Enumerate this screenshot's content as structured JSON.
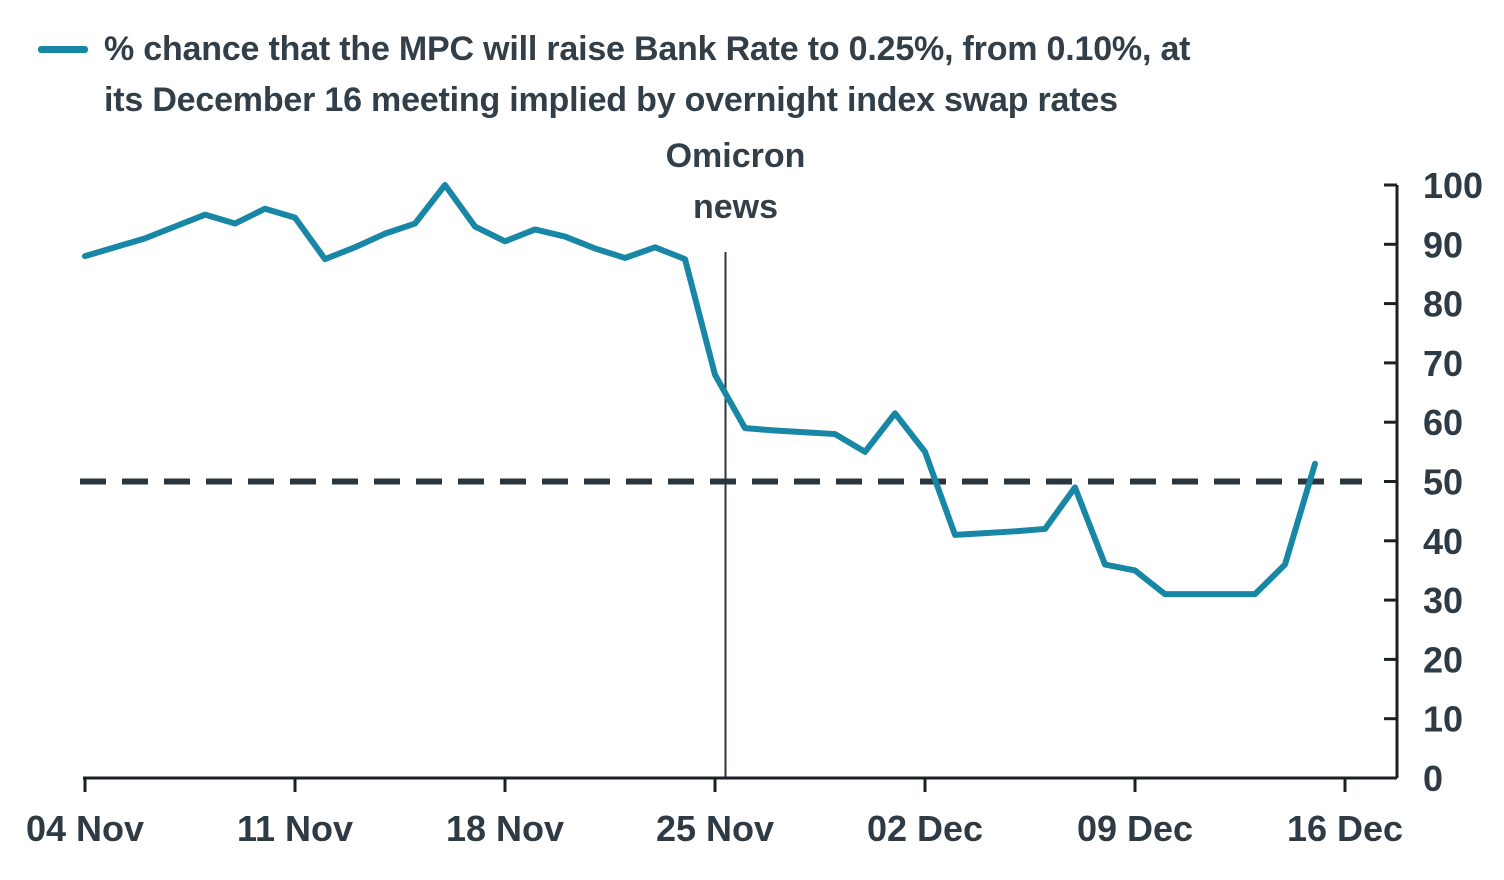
{
  "header": {
    "title_line1": "% chance that the MPC will raise Bank Rate to 0.25%, from 0.10%, at",
    "title_line2": "its December 16 meeting implied by overnight index swap rates",
    "legend_color": "#1887a6"
  },
  "chart_data": {
    "type": "line",
    "title": "% chance that the MPC will raise Bank Rate to 0.25%, from 0.10%, at its December 16 meeting implied by overnight index swap rates",
    "legend_position": "top-left",
    "axis_side": "right",
    "grid": false,
    "ylim": [
      0,
      100
    ],
    "y_ticks": [
      0,
      10,
      20,
      30,
      40,
      50,
      60,
      70,
      80,
      90,
      100
    ],
    "x_tick_labels": [
      "04 Nov",
      "11 Nov",
      "18 Nov",
      "25 Nov",
      "02 Dec",
      "09 Dec",
      "16 Dec"
    ],
    "x_tick_indices": [
      0,
      7,
      14,
      21,
      28,
      35,
      42
    ],
    "reference_line": {
      "value": 50,
      "style": "dashed",
      "color": "#2b353d"
    },
    "event_line": {
      "label": "Omicron\nnews",
      "x_index": 21.35,
      "color": "#2b353d"
    },
    "series": [
      {
        "name": "% chance of Bank Rate hike to 0.25% at Dec 16 meeting (OIS implied)",
        "color": "#1887a6",
        "points": [
          [
            "04 Nov",
            88
          ],
          [
            "05 Nov",
            89.5
          ],
          [
            "06 Nov",
            91
          ],
          [
            "07 Nov",
            93
          ],
          [
            "08 Nov",
            95
          ],
          [
            "09 Nov",
            93.5
          ],
          [
            "10 Nov",
            96
          ],
          [
            "11 Nov",
            94.5
          ],
          [
            "12 Nov",
            87.5
          ],
          [
            "13 Nov",
            89.5
          ],
          [
            "14 Nov",
            91.8
          ],
          [
            "15 Nov",
            93.5
          ],
          [
            "16 Nov",
            100
          ],
          [
            "17 Nov",
            93
          ],
          [
            "18 Nov",
            90.5
          ],
          [
            "19 Nov",
            92.5
          ],
          [
            "20 Nov",
            91.3
          ],
          [
            "21 Nov",
            89.3
          ],
          [
            "22 Nov",
            87.7
          ],
          [
            "23 Nov",
            89.5
          ],
          [
            "24 Nov",
            87.5
          ],
          [
            "25 Nov",
            68
          ],
          [
            "26 Nov",
            59
          ],
          [
            "27 Nov",
            58.6
          ],
          [
            "28 Nov",
            58.3
          ],
          [
            "29 Nov",
            58
          ],
          [
            "30 Nov",
            55
          ],
          [
            "01 Dec",
            61.5
          ],
          [
            "02 Dec",
            55
          ],
          [
            "03 Dec",
            41
          ],
          [
            "04 Dec",
            41.3
          ],
          [
            "05 Dec",
            41.6
          ],
          [
            "06 Dec",
            42
          ],
          [
            "07 Dec",
            49
          ],
          [
            "08 Dec",
            36
          ],
          [
            "09 Dec",
            35
          ],
          [
            "10 Dec",
            31
          ],
          [
            "11 Dec",
            31
          ],
          [
            "12 Dec",
            31
          ],
          [
            "13 Dec",
            31
          ],
          [
            "14 Dec",
            36
          ],
          [
            "15 Dec",
            53
          ]
        ]
      }
    ]
  }
}
